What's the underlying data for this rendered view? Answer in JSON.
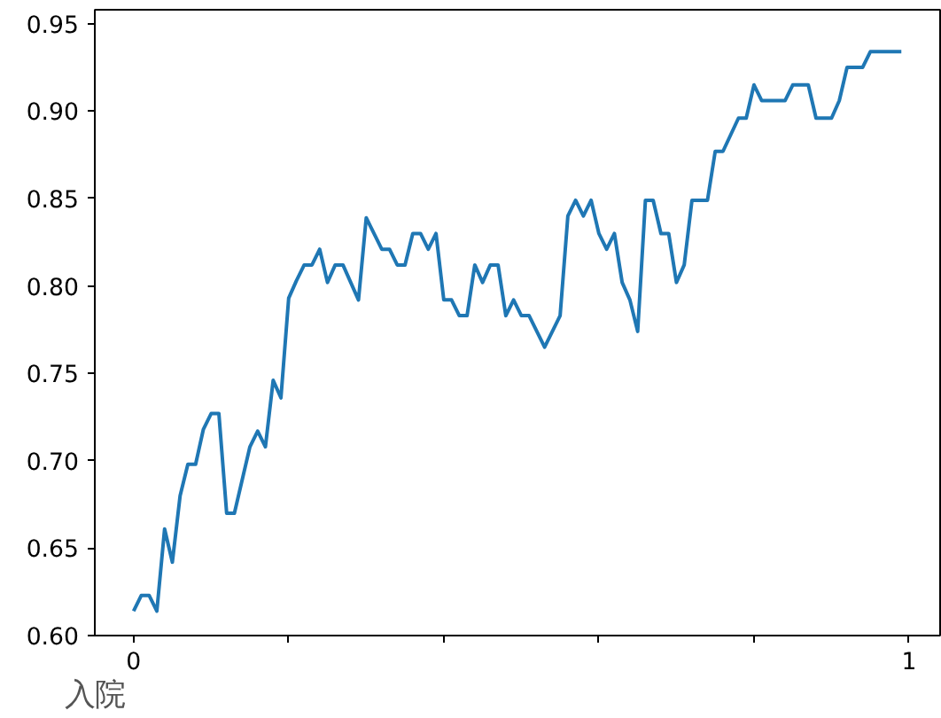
{
  "chart_data": {
    "type": "line",
    "xlabel": "入院",
    "x": [
      0,
      0.01,
      0.02,
      0.03,
      0.04,
      0.05,
      0.06,
      0.07,
      0.08,
      0.09,
      0.1,
      0.11,
      0.12,
      0.13,
      0.15,
      0.16,
      0.17,
      0.18,
      0.19,
      0.2,
      0.21,
      0.22,
      0.23,
      0.24,
      0.25,
      0.26,
      0.27,
      0.29,
      0.3,
      0.31,
      0.32,
      0.33,
      0.34,
      0.35,
      0.36,
      0.37,
      0.38,
      0.39,
      0.4,
      0.41,
      0.42,
      0.43,
      0.44,
      0.45,
      0.46,
      0.47,
      0.48,
      0.49,
      0.5,
      0.51,
      0.53,
      0.55,
      0.56,
      0.57,
      0.58,
      0.59,
      0.6,
      0.61,
      0.62,
      0.63,
      0.64,
      0.65,
      0.66,
      0.67,
      0.68,
      0.69,
      0.7,
      0.71,
      0.72,
      0.73,
      0.74,
      0.75,
      0.76,
      0.78,
      0.79,
      0.8,
      0.81,
      0.82,
      0.84,
      0.85,
      0.87,
      0.88,
      0.9,
      0.91,
      0.92,
      0.94,
      0.95,
      0.99
    ],
    "series": [
      {
        "color": "#1f77b4",
        "values": [
          0.614,
          0.623,
          0.623,
          0.614,
          0.661,
          0.642,
          0.68,
          0.698,
          0.698,
          0.718,
          0.727,
          0.727,
          0.67,
          0.67,
          0.708,
          0.717,
          0.708,
          0.746,
          0.736,
          0.793,
          0.803,
          0.812,
          0.812,
          0.821,
          0.802,
          0.812,
          0.812,
          0.792,
          0.839,
          0.83,
          0.821,
          0.821,
          0.812,
          0.812,
          0.83,
          0.83,
          0.821,
          0.83,
          0.792,
          0.792,
          0.783,
          0.783,
          0.812,
          0.802,
          0.812,
          0.812,
          0.783,
          0.792,
          0.783,
          0.783,
          0.765,
          0.783,
          0.84,
          0.849,
          0.84,
          0.849,
          0.83,
          0.821,
          0.83,
          0.802,
          0.792,
          0.774,
          0.849,
          0.849,
          0.83,
          0.83,
          0.802,
          0.812,
          0.849,
          0.849,
          0.849,
          0.877,
          0.877,
          0.896,
          0.896,
          0.915,
          0.906,
          0.906,
          0.906,
          0.915,
          0.915,
          0.896,
          0.896,
          0.906,
          0.925,
          0.925,
          0.934,
          0.934
        ]
      }
    ],
    "xlim": [
      -0.05,
      1.04
    ],
    "ylim": [
      0.6,
      0.958
    ],
    "xticks": [
      0,
      {
        "value": 0.2,
        "label": null
      },
      {
        "value": 0.4,
        "label": null
      },
      {
        "value": 0.6,
        "label": null
      },
      {
        "value": 0.8,
        "label": null
      },
      1
    ],
    "yticks": [
      {
        "value": 0.6,
        "label": "0.60"
      },
      {
        "value": 0.65,
        "label": "0.65"
      },
      {
        "value": 0.7,
        "label": "0.70"
      },
      {
        "value": 0.75,
        "label": "0.75"
      },
      {
        "value": 0.8,
        "label": "0.80"
      },
      {
        "value": 0.85,
        "label": "0.85"
      },
      {
        "value": 0.9,
        "label": "0.90"
      },
      {
        "value": 0.95,
        "label": "0.95"
      }
    ],
    "grid": false,
    "line_style": "solid"
  }
}
